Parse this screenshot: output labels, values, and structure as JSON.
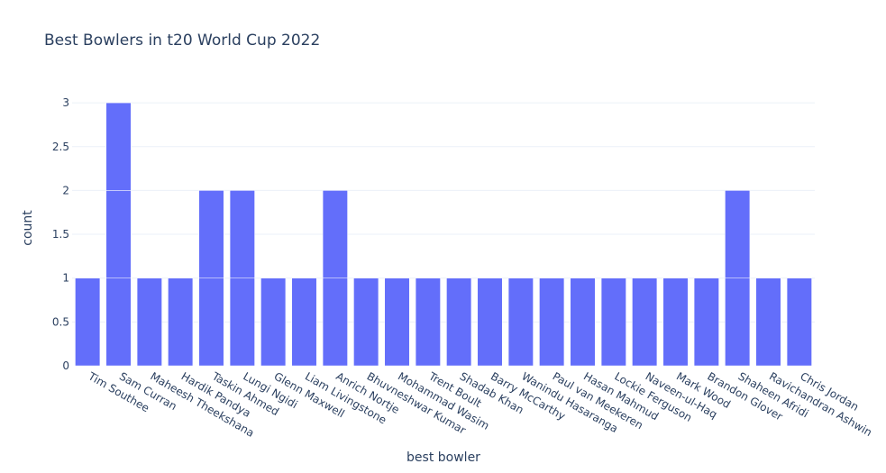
{
  "chart_data": {
    "type": "bar",
    "title": "Best Bowlers in t20 World Cup 2022",
    "xlabel": "best bowler",
    "ylabel": "count",
    "ylim": [
      0,
      3.2
    ],
    "yticks": [
      0,
      0.5,
      1,
      1.5,
      2,
      2.5,
      3
    ],
    "ytick_labels": [
      "0",
      "0.5",
      "1",
      "1.5",
      "2",
      "2.5",
      "3"
    ],
    "grid": true,
    "bar_color": "#636efa",
    "categories": [
      "Tim Southee",
      "Sam Curran",
      "Maheesh Theekshana",
      "Hardik Pandya",
      "Taskin Ahmed",
      "Lungi Ngidi",
      "Glenn Maxwell",
      "Liam Livingstone",
      "Anrich Nortje",
      "Bhuvneshwar Kumar",
      "Mohammad Wasim",
      "Trent Boult",
      "Shadab Khan",
      "Barry McCarthy",
      "Wanindu Hasaranga",
      "Paul van Meekeren",
      "Hasan Mahmud",
      "Lockie Ferguson",
      "Naveen-ul-Haq",
      "Mark Wood",
      "Brandon Glover",
      "Shaheen Afridi",
      "Ravichandran Ashwin",
      "Chris Jordan"
    ],
    "values": [
      1,
      3,
      1,
      1,
      2,
      2,
      1,
      1,
      2,
      1,
      1,
      1,
      1,
      1,
      1,
      1,
      1,
      1,
      1,
      1,
      1,
      2,
      1,
      1
    ]
  }
}
